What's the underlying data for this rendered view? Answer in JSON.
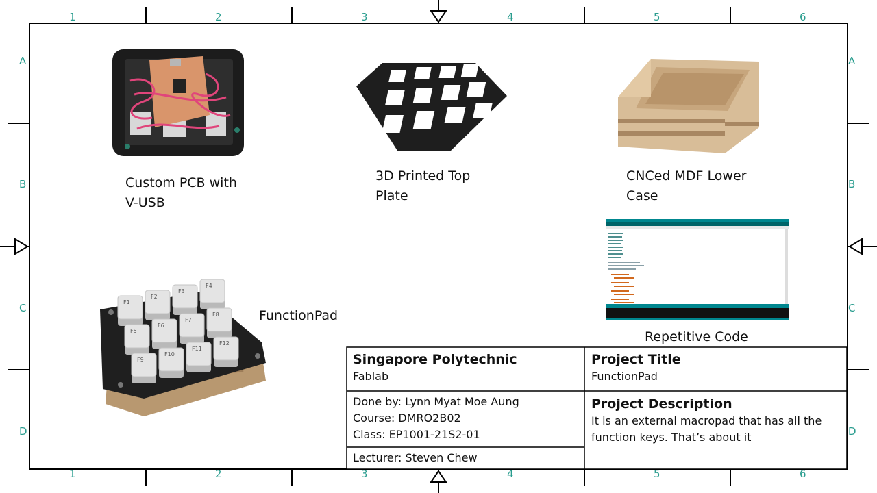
{
  "colors": {
    "border": "#000000",
    "zone_label": "#2a9d8f",
    "code_teal": "#00878f"
  },
  "zones": {
    "columns": [
      "1",
      "2",
      "3",
      "4",
      "5",
      "6"
    ],
    "rows": [
      "A",
      "B",
      "C",
      "D"
    ]
  },
  "captions": {
    "pcb_line1": "Custom PCB with",
    "pcb_line2": "V-USB",
    "plate_line1": "3D Printed Top",
    "plate_line2": "Plate",
    "case_line1": "CNCed MDF Lower",
    "case_line2": "Case",
    "pad": "FunctionPad",
    "code": "Repetitive Code"
  },
  "keypad_keys": [
    "F1",
    "F2",
    "F3",
    "F4",
    "F5",
    "F6",
    "F7",
    "F8",
    "F9",
    "F10",
    "F11",
    "F12"
  ],
  "title_block": {
    "school": "Singapore Polytechnic",
    "lab": "Fablab",
    "project_title_heading": "Project Title",
    "project_title": "FunctionPad",
    "done_by": "Done by: Lynn Myat Moe Aung",
    "course": "Course: DMRO2B02",
    "class": "Class: EP1001-21S2-01",
    "lecturer": "Lecturer: Steven Chew",
    "description_heading": "Project Description",
    "description_line1": "It is an external macropad that has all the",
    "description_line2": "function keys. That’s about it"
  }
}
